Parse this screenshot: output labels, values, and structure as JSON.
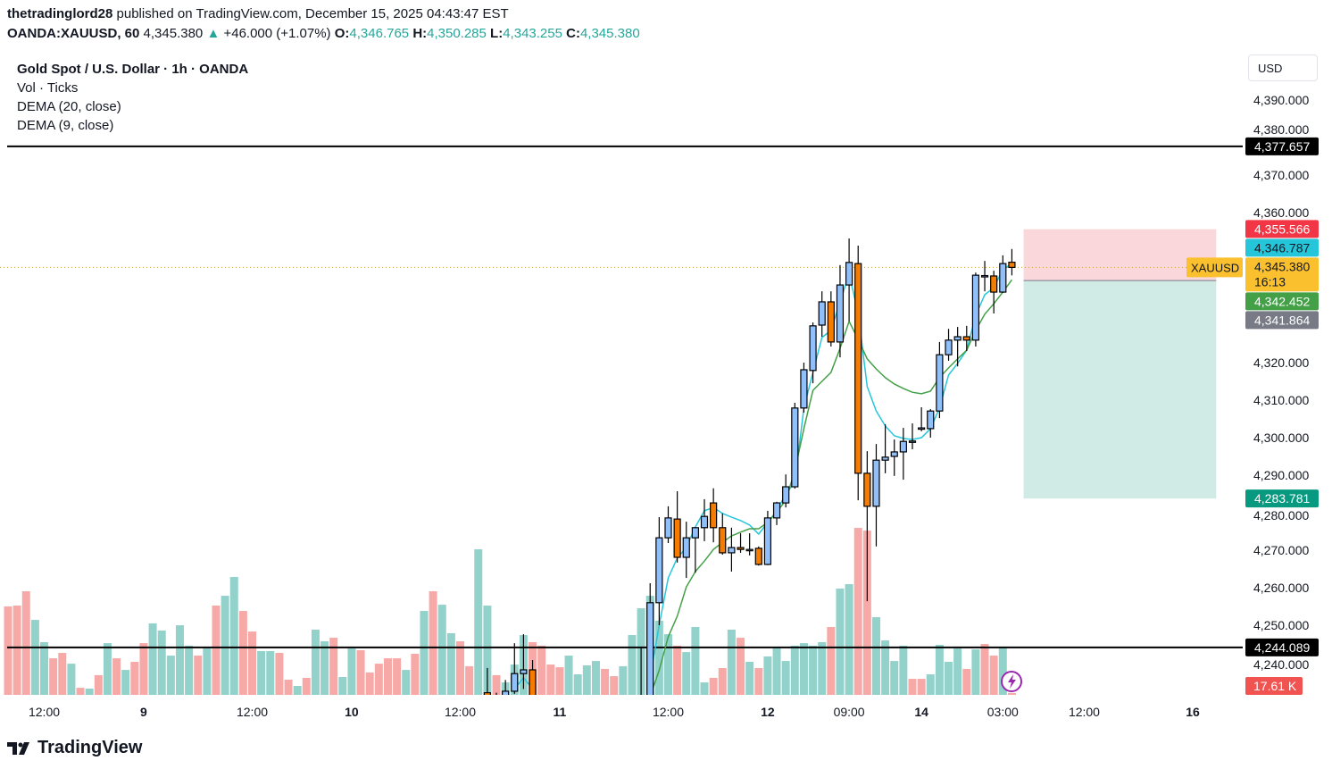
{
  "header": {
    "publisher": "thetradinglord28",
    "published_text": "published on TradingView.com, December 15, 2025 04:43:47 EST",
    "symbol": "OANDA:XAUUSD, 60",
    "last": "4,345.380",
    "change": "+46.000 (+1.07%)",
    "o_label": "O:",
    "o": "4,346.765",
    "h_label": "H:",
    "h": "4,350.285",
    "l_label": "L:",
    "l": "4,343.255",
    "c_label": "C:",
    "c": "4,345.380"
  },
  "legend": {
    "title": "Gold Spot / U.S. Dollar · 1h · OANDA",
    "vol": "Vol · Ticks",
    "dema20": "DEMA (20, close)",
    "dema9": "DEMA (9, close)"
  },
  "currency_button": "USD",
  "branding": "TradingView",
  "colors": {
    "up_body": "#90bff9",
    "down_body": "#f57c00",
    "vol_up": "#92d2cb",
    "vol_down": "#f7a9a7",
    "dema9": "#26c6da",
    "dema20": "#43a047",
    "stop_zone": "#fad7db",
    "target_zone": "#d0ebe6"
  },
  "chart_data": {
    "type": "candlestick",
    "title": "Gold Spot / U.S. Dollar · 1h · OANDA",
    "ylim": [
      4231,
      4401
    ],
    "y_ticks": [
      "4,390.000",
      "4,380.000",
      "4,370.000",
      "4,360.000",
      "4,320.000",
      "4,310.000",
      "4,300.000",
      "4,290.000",
      "4,280.000",
      "4,270.000",
      "4,260.000",
      "4,250.000",
      "4,240.000"
    ],
    "y_tick_values": [
      4390,
      4380,
      4370,
      4360,
      4320,
      4310,
      4300,
      4290,
      4280,
      4270,
      4260,
      4250,
      4240
    ],
    "x_ticks": [
      {
        "label": "12:00",
        "bar": 4,
        "bold": false
      },
      {
        "label": "9",
        "bar": 15,
        "bold": true
      },
      {
        "label": "12:00",
        "bar": 27,
        "bold": false
      },
      {
        "label": "10",
        "bar": 38,
        "bold": true
      },
      {
        "label": "12:00",
        "bar": 50,
        "bold": false
      },
      {
        "label": "11",
        "bar": 61,
        "bold": true
      },
      {
        "label": "12:00",
        "bar": 73,
        "bold": false
      },
      {
        "label": "12",
        "bar": 84,
        "bold": true
      },
      {
        "label": "09:00",
        "bar": 93,
        "bold": false
      },
      {
        "label": "14",
        "bar": 101,
        "bold": true
      },
      {
        "label": "03:00",
        "bar": 110,
        "bold": false
      },
      {
        "label": "12:00",
        "bar": 119,
        "bold": false
      },
      {
        "label": "16",
        "bar": 131,
        "bold": true
      }
    ],
    "candles": [
      {
        "bar": 53,
        "o": 4232,
        "h": 4238.6,
        "l": 4225,
        "c": 4230
      },
      {
        "bar": 54,
        "o": 4228,
        "h": 4232,
        "l": 4225,
        "c": 4229
      },
      {
        "bar": 55,
        "o": 4231,
        "h": 4235.4,
        "l": 4230,
        "c": 4232.4
      },
      {
        "bar": 56,
        "o": 4232.4,
        "h": 4245.2,
        "l": 4231.7,
        "c": 4237.1
      },
      {
        "bar": 57,
        "o": 4237.1,
        "h": 4247.6,
        "l": 4233,
        "c": 4238.1
      },
      {
        "bar": 58,
        "o": 4238.1,
        "h": 4240.7,
        "l": 4228,
        "c": 4230.9
      },
      {
        "bar": 70,
        "o": 4228,
        "h": 4244,
        "l": 4222,
        "c": 4230
      },
      {
        "bar": 71,
        "o": 4226,
        "h": 4261.2,
        "l": 4220,
        "c": 4256
      },
      {
        "bar": 72,
        "o": 4256,
        "h": 4278.8,
        "l": 4250,
        "c": 4273.3
      },
      {
        "bar": 73,
        "o": 4273.3,
        "h": 4281.7,
        "l": 4271.9,
        "c": 4278.6
      },
      {
        "bar": 74,
        "o": 4278.3,
        "h": 4285.7,
        "l": 4266.7,
        "c": 4268.1
      },
      {
        "bar": 75,
        "o": 4268.1,
        "h": 4277.6,
        "l": 4262.6,
        "c": 4273.3
      },
      {
        "bar": 76,
        "o": 4273.3,
        "h": 4276.2,
        "l": 4264,
        "c": 4276
      },
      {
        "bar": 77,
        "o": 4276,
        "h": 4283.6,
        "l": 4272.4,
        "c": 4279
      },
      {
        "bar": 78,
        "o": 4282.6,
        "h": 4286.5,
        "l": 4272.1,
        "c": 4276
      },
      {
        "bar": 79,
        "o": 4276,
        "h": 4279.8,
        "l": 4268.8,
        "c": 4269.3
      },
      {
        "bar": 80,
        "o": 4269.3,
        "h": 4276,
        "l": 4264.3,
        "c": 4270.7
      },
      {
        "bar": 81,
        "o": 4270.7,
        "h": 4274.5,
        "l": 4269.3,
        "c": 4270.2
      },
      {
        "bar": 82,
        "o": 4270.2,
        "h": 4274.5,
        "l": 4268.6,
        "c": 4270.2
      },
      {
        "bar": 83,
        "o": 4270.5,
        "h": 4271,
        "l": 4265.9,
        "c": 4266.2
      },
      {
        "bar": 84,
        "o": 4266.2,
        "h": 4280.5,
        "l": 4266,
        "c": 4278.6
      },
      {
        "bar": 85,
        "o": 4278.6,
        "h": 4282.9,
        "l": 4276.7,
        "c": 4282.6
      },
      {
        "bar": 86,
        "o": 4282.6,
        "h": 4290.2,
        "l": 4281.4,
        "c": 4286.9
      },
      {
        "bar": 87,
        "o": 4286.9,
        "h": 4309.3,
        "l": 4286.4,
        "c": 4307.9
      },
      {
        "bar": 88,
        "o": 4307.9,
        "h": 4320,
        "l": 4306.7,
        "c": 4318.1
      },
      {
        "bar": 89,
        "o": 4317.9,
        "h": 4330.7,
        "l": 4314.5,
        "c": 4329.8
      },
      {
        "bar": 90,
        "o": 4330,
        "h": 4339,
        "l": 4326.9,
        "c": 4336.2
      },
      {
        "bar": 91,
        "o": 4336.2,
        "h": 4339,
        "l": 4324.3,
        "c": 4325.5
      },
      {
        "bar": 92,
        "o": 4325.5,
        "h": 4346,
        "l": 4321.4,
        "c": 4340.7
      },
      {
        "bar": 93,
        "o": 4340.7,
        "h": 4353.1,
        "l": 4331,
        "c": 4346.7
      },
      {
        "bar": 94,
        "o": 4346.4,
        "h": 4351.2,
        "l": 4283.3,
        "c": 4290.5
      },
      {
        "bar": 95,
        "o": 4290.5,
        "h": 4296.4,
        "l": 4256.4,
        "c": 4281.7
      },
      {
        "bar": 96,
        "o": 4281.7,
        "h": 4298.3,
        "l": 4271,
        "c": 4294
      },
      {
        "bar": 97,
        "o": 4294,
        "h": 4303.6,
        "l": 4290.5,
        "c": 4294.8
      },
      {
        "bar": 98,
        "o": 4295,
        "h": 4299.5,
        "l": 4289.8,
        "c": 4296.2
      },
      {
        "bar": 99,
        "o": 4296.2,
        "h": 4302.6,
        "l": 4288.8,
        "c": 4299
      },
      {
        "bar": 100,
        "o": 4299,
        "h": 4303.8,
        "l": 4296.9,
        "c": 4299.1
      },
      {
        "bar": 101,
        "o": 4302.4,
        "h": 4308.1,
        "l": 4301.7,
        "c": 4302.6
      },
      {
        "bar": 102,
        "o": 4302.4,
        "h": 4307.6,
        "l": 4300,
        "c": 4307.1
      },
      {
        "bar": 103,
        "o": 4307.1,
        "h": 4325.5,
        "l": 4305.2,
        "c": 4322.1
      },
      {
        "bar": 104,
        "o": 4322.1,
        "h": 4329,
        "l": 4320.5,
        "c": 4326
      },
      {
        "bar": 105,
        "o": 4326,
        "h": 4329.5,
        "l": 4319,
        "c": 4326.9
      },
      {
        "bar": 106,
        "o": 4326.9,
        "h": 4329.8,
        "l": 4323.1,
        "c": 4326
      },
      {
        "bar": 107,
        "o": 4326,
        "h": 4344,
        "l": 4324.3,
        "c": 4343.3
      },
      {
        "bar": 108,
        "o": 4343.1,
        "h": 4347.1,
        "l": 4339,
        "c": 4343.2
      },
      {
        "bar": 109,
        "o": 4343.1,
        "h": 4344.5,
        "l": 4333.1,
        "c": 4338.8
      },
      {
        "bar": 110,
        "o": 4338.8,
        "h": 4348.6,
        "l": 4338.6,
        "c": 4346.4
      },
      {
        "bar": 111,
        "o": 4346.765,
        "h": 4350.285,
        "l": 4343.255,
        "c": 4345.38
      }
    ],
    "volume_k": [
      62.4,
      63,
      73.1,
      52.9,
      37.2,
      25.8,
      29.6,
      22,
      5,
      4.4,
      13.9,
      36.5,
      25.8,
      17.6,
      23.3,
      36.5,
      50.4,
      45.4,
      27.7,
      49.1,
      34.7,
      27.7,
      33.4,
      63,
      69.9,
      83.2,
      59.2,
      44.7,
      30.9,
      30.9,
      29.6,
      10.7,
      6.3,
      12,
      46,
      37.8,
      40.3,
      12.6,
      32.8,
      31.5,
      15.8,
      22,
      25.8,
      25.8,
      17.6,
      29,
      59.2,
      73.1,
      63.6,
      43.5,
      37.8,
      20.2,
      102.7,
      63,
      13.9,
      8.8,
      21.4,
      42.2,
      37.2,
      34.7,
      21.4,
      19.5,
      27.7,
      14.5,
      20.8,
      23.9,
      18.3,
      13.2,
      20.2,
      42.2,
      61.1,
      69.9,
      52.3,
      42.8,
      34.7,
      30.2,
      47.9,
      8.8,
      12,
      18.9,
      46,
      40.3,
      23.3,
      18.9,
      27.1,
      33.4,
      23.9,
      34.7,
      36.5,
      34.7,
      37.2,
      47.9,
      75,
      78.1,
      117.8,
      115.9,
      54.8,
      38.4,
      23.9,
      34.7,
      11.3,
      11.3,
      14.5,
      35.3,
      23.3,
      32.8,
      18.3,
      32.1,
      35.9,
      27.7,
      33.4,
      1.3
    ],
    "volume_up": [
      0,
      0,
      0,
      1,
      1,
      0,
      0,
      1,
      0,
      1,
      0,
      1,
      0,
      1,
      0,
      0,
      1,
      1,
      1,
      1,
      1,
      0,
      1,
      0,
      1,
      1,
      0,
      0,
      1,
      1,
      0,
      0,
      1,
      0,
      1,
      1,
      0,
      1,
      1,
      0,
      0,
      0,
      0,
      0,
      1,
      0,
      1,
      0,
      1,
      1,
      0,
      0,
      1,
      1,
      0,
      1,
      1,
      1,
      0,
      0,
      0,
      0,
      1,
      1,
      1,
      1,
      0,
      0,
      1,
      1,
      1,
      1,
      1,
      1,
      0,
      1,
      1,
      1,
      0,
      0,
      1,
      0,
      1,
      0,
      1,
      1,
      1,
      1,
      1,
      1,
      1,
      0,
      1,
      1,
      0,
      0,
      1,
      1,
      1,
      1,
      0,
      0,
      1,
      1,
      1,
      1,
      0,
      1,
      0,
      0,
      1,
      0
    ],
    "series": [
      {
        "name": "DEMA (9, close)",
        "points": [
          [
            56,
            4233
          ],
          [
            57,
            4236
          ],
          [
            58,
            4233
          ],
          null,
          [
            71,
            4236
          ],
          [
            72,
            4250
          ],
          [
            73,
            4262.6
          ],
          [
            74,
            4267.9
          ],
          [
            75,
            4270.7
          ],
          [
            76,
            4276.2
          ],
          [
            77,
            4280.5
          ],
          [
            78,
            4281.4
          ],
          [
            79,
            4279.8
          ],
          [
            80,
            4278.8
          ],
          [
            81,
            4277.9
          ],
          [
            82,
            4276.7
          ],
          [
            83,
            4274.3
          ],
          [
            84,
            4277.4
          ],
          [
            85,
            4280.5
          ],
          [
            86,
            4285
          ],
          [
            87,
            4288.1
          ],
          [
            88,
            4307.9
          ],
          [
            89,
            4317.4
          ],
          [
            90,
            4326.7
          ],
          [
            91,
            4328.6
          ],
          [
            92,
            4336.2
          ],
          [
            93,
            4343.6
          ],
          [
            94,
            4333.3
          ],
          [
            95,
            4313.6
          ],
          [
            96,
            4307.1
          ],
          [
            97,
            4303.1
          ],
          [
            98,
            4300.5
          ],
          [
            99,
            4299.8
          ],
          [
            100,
            4299.5
          ],
          [
            101,
            4300
          ],
          [
            102,
            4302.4
          ],
          [
            103,
            4307.9
          ],
          [
            104,
            4316.7
          ],
          [
            105,
            4319.8
          ],
          [
            106,
            4323.3
          ],
          [
            107,
            4332.6
          ],
          [
            108,
            4338.1
          ],
          [
            109,
            4340
          ],
          [
            110,
            4344.8
          ],
          [
            111,
            4346.4
          ]
        ]
      },
      {
        "name": "DEMA (20, close)",
        "points": [
          [
            71,
            4231
          ],
          [
            72,
            4238
          ],
          [
            73,
            4246.9
          ],
          [
            74,
            4252.4
          ],
          [
            75,
            4260.2
          ],
          [
            76,
            4264.3
          ],
          [
            77,
            4267.1
          ],
          [
            78,
            4270.2
          ],
          [
            79,
            4272.1
          ],
          [
            80,
            4273.8
          ],
          [
            81,
            4274.8
          ],
          [
            82,
            4275.7
          ],
          [
            83,
            4275.7
          ],
          [
            84,
            4277.4
          ],
          [
            85,
            4280.2
          ],
          [
            86,
            4283.3
          ],
          [
            87,
            4291.2
          ],
          [
            88,
            4302.4
          ],
          [
            89,
            4312.6
          ],
          [
            90,
            4315
          ],
          [
            91,
            4317.4
          ],
          [
            92,
            4323.8
          ],
          [
            93,
            4331
          ],
          [
            94,
            4326.2
          ],
          [
            95,
            4321
          ],
          [
            96,
            4318.3
          ],
          [
            97,
            4316
          ],
          [
            98,
            4314.3
          ],
          [
            99,
            4313.1
          ],
          [
            100,
            4312.1
          ],
          [
            101,
            4311.7
          ],
          [
            102,
            4312.4
          ],
          [
            103,
            4316
          ],
          [
            104,
            4318.6
          ],
          [
            105,
            4321
          ],
          [
            106,
            4323.3
          ],
          [
            107,
            4328.6
          ],
          [
            108,
            4332.9
          ],
          [
            109,
            4335.7
          ],
          [
            110,
            4338.8
          ],
          [
            111,
            4342.1
          ]
        ]
      }
    ],
    "horizontal_lines": [
      4377.657,
      4244.089
    ],
    "position": {
      "from_bar": 112,
      "to_bar": 133,
      "stop": 4355.566,
      "entry": 4341.864,
      "target": 4283.781
    },
    "price_labels": [
      {
        "value": 4377.657,
        "text": "4,377.657",
        "bg": "#000000",
        "fg": "#ffffff"
      },
      {
        "value": 4355.566,
        "text": "4,355.566",
        "bg": "#f23645",
        "fg": "#ffffff"
      },
      {
        "value": 4346.787,
        "text": "4,346.787",
        "bg": "#26c6da",
        "fg": "#131722"
      },
      {
        "value": 4345.38,
        "text": "4,345.380",
        "sub": "16:13",
        "bg": "#fbc02d",
        "fg": "#131722"
      },
      {
        "value": 4342.452,
        "text": "4,342.452",
        "bg": "#43a047",
        "fg": "#ffffff"
      },
      {
        "value": 4341.864,
        "text": "4,341.864",
        "bg": "#787b86",
        "fg": "#ffffff"
      },
      {
        "value": 4283.781,
        "text": "4,283.781",
        "bg": "#089981",
        "fg": "#ffffff"
      },
      {
        "value": 4244.089,
        "text": "4,244.089",
        "bg": "#000000",
        "fg": "#ffffff"
      }
    ],
    "volume_label": "17.61 K",
    "symbol_tag": "XAUUSD"
  }
}
